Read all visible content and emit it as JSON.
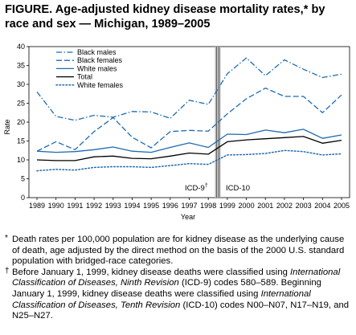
{
  "figure": {
    "title": "FIGURE. Age-adjusted kidney disease mortality rates,* by race and sex — Michigan, 1989–2005"
  },
  "chart_data": {
    "type": "line",
    "xlabel": "Year",
    "ylabel": "Rate",
    "x": [
      1989,
      1990,
      1991,
      1992,
      1993,
      1994,
      1995,
      1996,
      1997,
      1998,
      1999,
      2000,
      2001,
      2002,
      2003,
      2004,
      2005
    ],
    "xticklabels": [
      "1989",
      "1990",
      "1991",
      "1992",
      "1993",
      "1994",
      "1995",
      "1996",
      "1997",
      "1998",
      "1999",
      "2000",
      "2001",
      "2002",
      "2003",
      "2004",
      "2005"
    ],
    "ylim": [
      0,
      40
    ],
    "yticks": [
      0,
      5,
      10,
      15,
      20,
      25,
      30,
      35,
      40
    ],
    "legend_position": "top-left",
    "series": [
      {
        "name": "Black males",
        "dash": "dashdot",
        "color": "#1f6bb0",
        "values": [
          28.0,
          21.5,
          20.5,
          21.8,
          21.3,
          22.8,
          22.7,
          21.0,
          25.8,
          24.7,
          32.8,
          37.0,
          32.3,
          36.5,
          34.0,
          31.8,
          32.7
        ]
      },
      {
        "name": "Black females",
        "dash": "dashed",
        "color": "#1f6bb0",
        "values": [
          12.3,
          14.8,
          12.7,
          17.5,
          21.2,
          16.0,
          13.2,
          17.5,
          17.8,
          17.6,
          22.2,
          26.2,
          29.0,
          26.8,
          26.8,
          22.5,
          27.2
        ]
      },
      {
        "name": "White males",
        "dash": "solid",
        "color": "#1f6bb0",
        "values": [
          12.3,
          12.0,
          12.2,
          12.7,
          13.4,
          12.3,
          12.0,
          13.3,
          14.5,
          13.3,
          16.8,
          16.7,
          17.9,
          17.2,
          18.1,
          15.7,
          16.6
        ]
      },
      {
        "name": "Total",
        "dash": "solid",
        "color": "#000000",
        "values": [
          10.0,
          9.8,
          9.8,
          10.8,
          11.0,
          10.4,
          10.3,
          11.0,
          11.8,
          11.5,
          14.8,
          15.3,
          15.6,
          15.9,
          16.2,
          14.4,
          15.2
        ]
      },
      {
        "name": "White females",
        "dash": "dotted",
        "color": "#1f6bb0",
        "values": [
          7.1,
          7.5,
          7.3,
          8.0,
          8.2,
          8.2,
          8.0,
          8.5,
          9.0,
          8.8,
          11.3,
          11.4,
          11.7,
          12.5,
          12.2,
          11.3,
          11.6
        ]
      }
    ],
    "annotations": {
      "icd9": "ICD-9",
      "icd9_mark": "†",
      "icd10": "ICD-10"
    }
  },
  "footnotes": {
    "star_mark": "*",
    "star_text": "Death rates per 100,000 population are for kidney disease as the underlying cause of death, age adjusted by the direct method on the basis of the 2000 U.S. standard population with bridged-race categories.",
    "dagger_mark": "†",
    "dagger_p1": "Before January 1, 1999, kidney disease deaths were classified using ",
    "dagger_i1": "International Classification of Diseases, Ninth Revision",
    "dagger_p2": " (ICD-9) codes 580–589. Beginning January 1, 1999, kidney disease deaths were classified using ",
    "dagger_i2": "International Classification of Diseases, Tenth Revision",
    "dagger_p3": " (ICD-10) codes N00–N07, N17–N19, and N25–N27."
  }
}
